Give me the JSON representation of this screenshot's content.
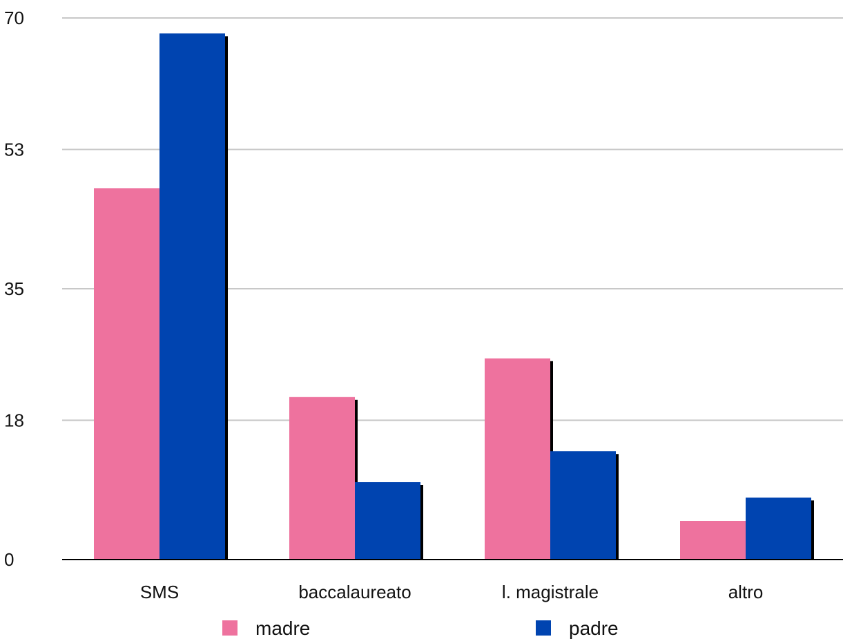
{
  "chart_data": {
    "type": "bar",
    "categories": [
      "SMS",
      "baccalaureato",
      "l. magistrale",
      "altro"
    ],
    "series": [
      {
        "name": "madre",
        "values": [
          48,
          21,
          26,
          5
        ],
        "color": "#ee729e"
      },
      {
        "name": "padre",
        "values": [
          68,
          10,
          14,
          8
        ],
        "color": "#0044b0"
      }
    ],
    "y_ticks": [
      0,
      18,
      35,
      53,
      70
    ],
    "ylim": [
      0,
      70
    ],
    "grid": true,
    "legend_position": "bottom",
    "title": "",
    "xlabel": "",
    "ylabel": ""
  }
}
